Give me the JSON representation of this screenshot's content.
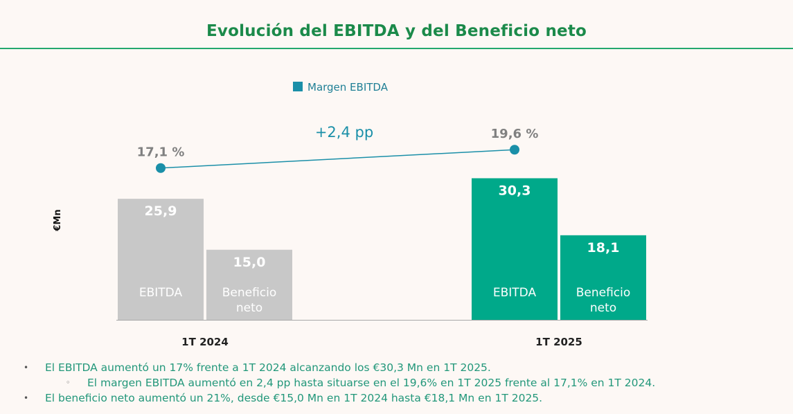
{
  "title": "Evolución del EBITDA y del Beneficio neto",
  "colors": {
    "title": "#1b8a4a",
    "rule": "#23a86e",
    "bar_2024": "#c8c8c8",
    "bar_2025": "#00a98a",
    "margin_line": "#1a8fa8",
    "margin_label": "#808080",
    "delta_label": "#1a8fa8",
    "bullet_text": "#22977a"
  },
  "chart_data": {
    "type": "bar",
    "ylabel": "€Mn",
    "categories": [
      "1T 2024",
      "1T 2025"
    ],
    "bar_labels": [
      "EBITDA",
      "Beneficio neto"
    ],
    "series": [
      {
        "name": "EBITDA",
        "values": [
          25.9,
          30.3
        ],
        "labels": [
          "25,9",
          "30,3"
        ]
      },
      {
        "name": "Beneficio neto",
        "values": [
          15.0,
          18.1
        ],
        "labels": [
          "15,0",
          "18,1"
        ]
      }
    ],
    "ylim": [
      0,
      32
    ],
    "margin_series": {
      "name": "Margen EBITDA",
      "type": "line",
      "values": [
        17.1,
        19.6
      ],
      "labels": [
        "17,1 %",
        "19,6 %"
      ]
    },
    "annotation": "+2,4 pp",
    "legend_position": "top"
  },
  "bullets": [
    {
      "level": 1,
      "marker": "•",
      "text": "El EBITDA aumentó un 17% frente a 1T 2024 alcanzando los €30,3 Mn en 1T 2025."
    },
    {
      "level": 2,
      "marker": "◦",
      "text": "El margen EBITDA aumentó en 2,4 pp hasta situarse en el 19,6% en 1T 2025 frente al 17,1% en 1T 2024."
    },
    {
      "level": 1,
      "marker": "•",
      "text": "El beneficio neto aumentó un 21%, desde €15,0 Mn en 1T 2024 hasta €18,1 Mn en 1T 2025."
    }
  ]
}
